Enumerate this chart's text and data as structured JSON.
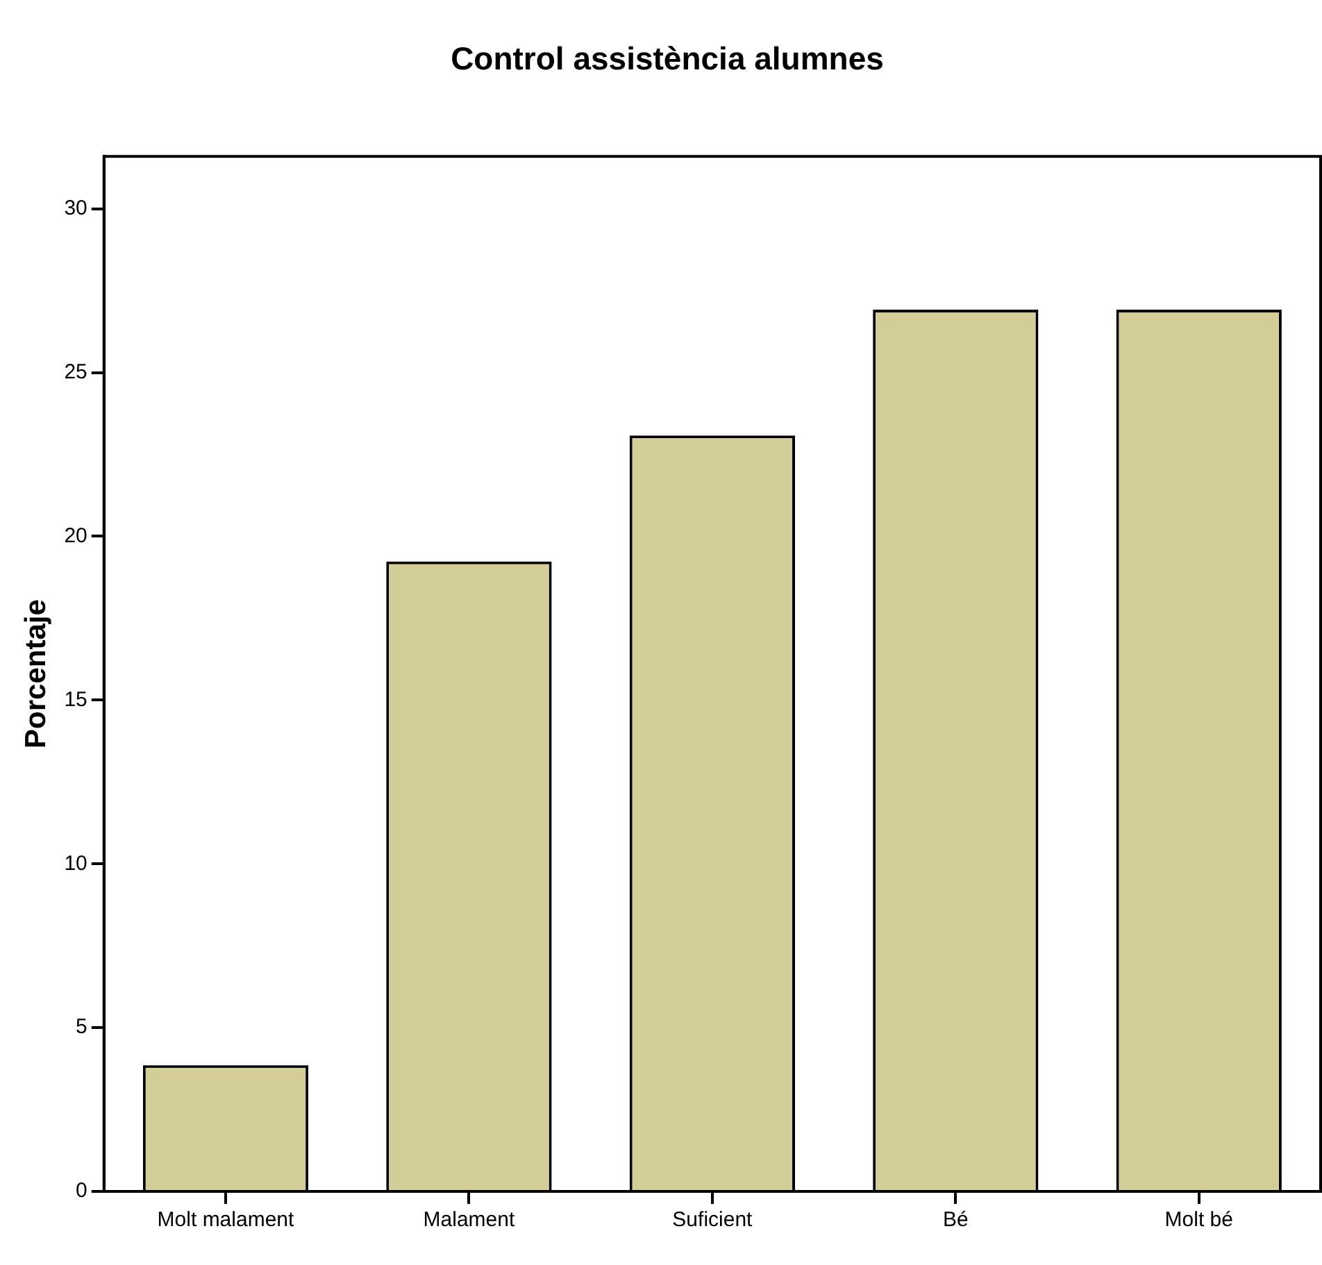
{
  "chart_data": {
    "type": "bar",
    "title": "Control assistència alumnes",
    "ylabel": "Porcentaje",
    "categories": [
      "Molt malament",
      "Malament",
      "Suficient",
      "Bé",
      "Molt bé"
    ],
    "values": [
      3.85,
      19.23,
      23.08,
      26.92,
      26.92
    ],
    "color": "#d3ce98",
    "ylim": [
      0,
      31.6
    ],
    "yticks": [
      0,
      5,
      10,
      15,
      20,
      25,
      30
    ],
    "grid": false,
    "legend": false
  }
}
